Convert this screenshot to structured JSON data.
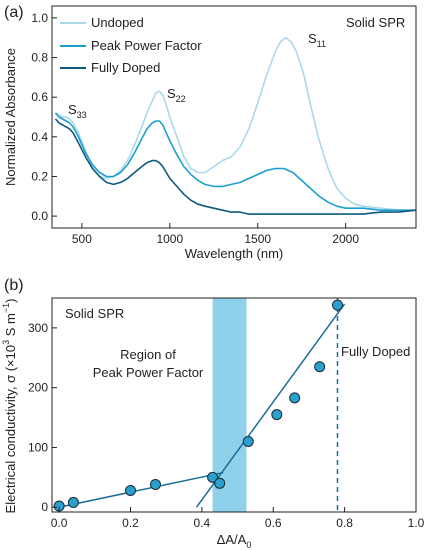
{
  "panel_a_label": "(a)",
  "panel_b_label": "(b)",
  "chart_data": [
    {
      "type": "line",
      "title": "",
      "xlabel": "Wavelength (nm)",
      "ylabel": "Normalized Absorbance",
      "xlim": [
        330,
        2400
      ],
      "ylim": [
        -0.06,
        1.06
      ],
      "xticks": [
        500,
        1000,
        1500,
        2000
      ],
      "yticks": [
        0.0,
        0.2,
        0.4,
        0.6,
        0.8,
        1.0
      ],
      "xtick_labels": [
        "500",
        "1000",
        "1500",
        "2000"
      ],
      "ytick_labels": [
        "0.0",
        "0.2",
        "0.4",
        "0.6",
        "0.8",
        "1.0"
      ],
      "legend_position": "top-left",
      "annotation": "Solid SPR",
      "peak_labels": [
        {
          "main": "S",
          "sub": "33",
          "x": 350,
          "y": 0.53
        },
        {
          "main": "S",
          "sub": "22",
          "x": 945,
          "y": 0.63
        },
        {
          "main": "S",
          "sub": "11",
          "x": 1660,
          "y": 0.9
        }
      ],
      "series": [
        {
          "name": "Undoped",
          "color": "#a9d9ea",
          "x": [
            350,
            370,
            390,
            410,
            430,
            450,
            480,
            520,
            560,
            600,
            640,
            680,
            720,
            760,
            800,
            840,
            870,
            900,
            920,
            940,
            960,
            980,
            1000,
            1040,
            1080,
            1120,
            1160,
            1200,
            1250,
            1300,
            1350,
            1400,
            1450,
            1500,
            1550,
            1600,
            1630,
            1660,
            1690,
            1720,
            1760,
            1800,
            1850,
            1900,
            1950,
            2000,
            2050,
            2100,
            2200,
            2300,
            2400
          ],
          "y": [
            0.52,
            0.51,
            0.5,
            0.5,
            0.49,
            0.47,
            0.42,
            0.33,
            0.25,
            0.2,
            0.19,
            0.2,
            0.23,
            0.28,
            0.36,
            0.45,
            0.52,
            0.58,
            0.62,
            0.63,
            0.61,
            0.56,
            0.5,
            0.4,
            0.3,
            0.24,
            0.22,
            0.22,
            0.25,
            0.28,
            0.3,
            0.35,
            0.44,
            0.57,
            0.71,
            0.83,
            0.88,
            0.9,
            0.88,
            0.83,
            0.72,
            0.56,
            0.38,
            0.24,
            0.14,
            0.09,
            0.06,
            0.05,
            0.04,
            0.03,
            0.03
          ]
        },
        {
          "name": "Peak Power Factor",
          "color": "#1c9fd0",
          "x": [
            350,
            370,
            390,
            410,
            430,
            450,
            480,
            520,
            560,
            600,
            640,
            680,
            720,
            760,
            800,
            840,
            870,
            900,
            920,
            940,
            960,
            980,
            1000,
            1040,
            1080,
            1120,
            1160,
            1200,
            1250,
            1300,
            1350,
            1400,
            1450,
            1500,
            1550,
            1600,
            1650,
            1700,
            1750,
            1800,
            1850,
            1900,
            1950,
            2000,
            2100,
            2200,
            2300,
            2400
          ],
          "y": [
            0.52,
            0.5,
            0.49,
            0.48,
            0.47,
            0.45,
            0.4,
            0.32,
            0.26,
            0.22,
            0.2,
            0.2,
            0.22,
            0.26,
            0.32,
            0.39,
            0.44,
            0.47,
            0.48,
            0.48,
            0.46,
            0.42,
            0.38,
            0.31,
            0.25,
            0.21,
            0.18,
            0.16,
            0.15,
            0.15,
            0.16,
            0.17,
            0.19,
            0.21,
            0.23,
            0.24,
            0.24,
            0.22,
            0.18,
            0.14,
            0.1,
            0.07,
            0.05,
            0.04,
            0.04,
            0.03,
            0.03,
            0.03
          ]
        },
        {
          "name": "Fully Doped",
          "color": "#0e5a7e",
          "x": [
            350,
            370,
            390,
            410,
            430,
            450,
            480,
            520,
            560,
            600,
            640,
            680,
            720,
            760,
            800,
            840,
            870,
            900,
            920,
            940,
            960,
            980,
            1000,
            1040,
            1080,
            1120,
            1160,
            1200,
            1250,
            1300,
            1350,
            1400,
            1450,
            1500,
            1600,
            1700,
            1800,
            1900,
            2000,
            2100,
            2200,
            2300,
            2400
          ],
          "y": [
            0.49,
            0.47,
            0.46,
            0.45,
            0.44,
            0.42,
            0.37,
            0.3,
            0.24,
            0.2,
            0.17,
            0.16,
            0.17,
            0.19,
            0.22,
            0.25,
            0.27,
            0.28,
            0.28,
            0.27,
            0.25,
            0.22,
            0.19,
            0.15,
            0.11,
            0.08,
            0.06,
            0.05,
            0.04,
            0.03,
            0.02,
            0.02,
            0.01,
            0.01,
            0.01,
            0.01,
            0.01,
            0.01,
            0.01,
            0.01,
            0.02,
            0.02,
            0.03
          ]
        }
      ]
    },
    {
      "type": "scatter",
      "title": "",
      "xlabel_main": "ΔA/A",
      "xlabel_sub": "0",
      "ylabel_prefix": "Electrical conductivity, σ (×10",
      "ylabel_exp": "3",
      "ylabel_mid": " S m",
      "ylabel_exp2": "−1",
      "ylabel_suffix": ")",
      "xlim": [
        -0.02,
        1.0
      ],
      "ylim": [
        -8,
        350
      ],
      "xticks": [
        0.0,
        0.2,
        0.4,
        0.6,
        0.8,
        1.0
      ],
      "yticks": [
        0,
        100,
        200,
        300
      ],
      "xtick_labels": [
        "0.0",
        "0.2",
        "0.4",
        "0.6",
        "0.8",
        "1.0"
      ],
      "ytick_labels": [
        "0",
        "100",
        "200",
        "300"
      ],
      "annotation_solid": "Solid SPR",
      "region_label_line1": "Region of",
      "region_label_line2": "Peak Power Factor",
      "region_x": [
        0.43,
        0.525
      ],
      "region_color": "#8fd0ea",
      "fully_doped_label": "Fully Doped",
      "fully_doped_x": 0.78,
      "point_color": "#2a9fd0",
      "x": [
        0.0,
        0.04,
        0.2,
        0.27,
        0.43,
        0.45,
        0.53,
        0.61,
        0.66,
        0.73,
        0.78
      ],
      "y": [
        2,
        8,
        28,
        38,
        50,
        40,
        110,
        155,
        183,
        235,
        338
      ],
      "fit_lines": [
        {
          "x": [
            0.0,
            0.46
          ],
          "y": [
            0,
            58
          ]
        },
        {
          "x": [
            0.385,
            0.8
          ],
          "y": [
            0,
            340
          ]
        }
      ]
    }
  ]
}
